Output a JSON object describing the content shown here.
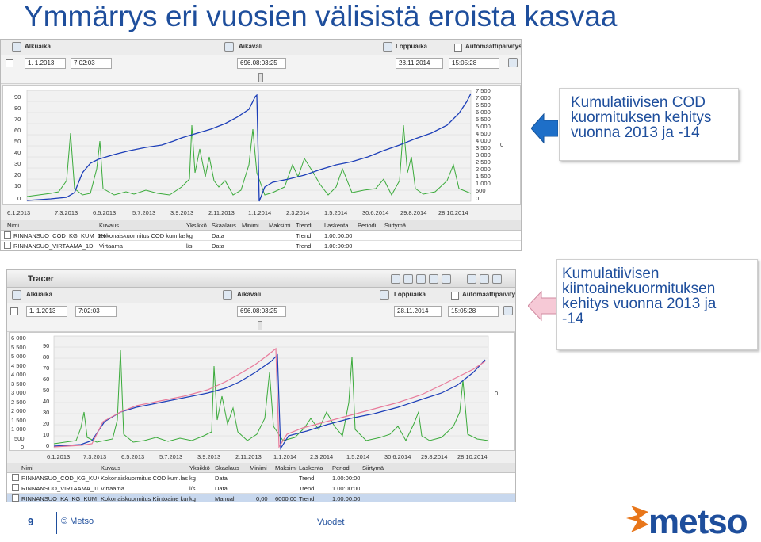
{
  "slide": {
    "title": "Ymmärrys eri vuosien välisistä eroista kasvaa",
    "page_number": "9",
    "copyright": "© Metso",
    "footer_text": "Vuodet",
    "logo_text": "metso",
    "colors": {
      "title": "#1e4e9c",
      "arrow_blue": "#1e6fc8",
      "arrow_pink": "#f6c9d6",
      "logo_orange": "#e8761a"
    }
  },
  "callouts": {
    "top": [
      "Kumulatiivisen COD",
      "kuormituksen kehitys",
      "vuonna 2013 ja -14"
    ],
    "bottom": [
      "Kumulatiivisen",
      "kiintoainekuormituksen",
      "kehitys vuonna 2013 ja",
      "-14"
    ]
  },
  "tracer_top": {
    "start_label": "Alkuaika",
    "interval_label": "Aikaväli",
    "end_label": "Loppuaika",
    "auto_label": "Automaattipäivitys",
    "start_date": "1. 1.2013",
    "start_time": "7:02:03",
    "interval_value": "696.08:03:25",
    "end_date": "28.11.2014",
    "end_time": "15:05:28",
    "left_ticks": [
      "90",
      "80",
      "70",
      "60",
      "50",
      "40",
      "30",
      "20",
      "10",
      "0"
    ],
    "right_ticks": [
      "7 500",
      "7 000",
      "6 500",
      "6 000",
      "5 500",
      "5 000",
      "4 500",
      "4 000",
      "3 500",
      "3 000",
      "2 500",
      "2 000",
      "1 500",
      "1 000",
      "500",
      "0"
    ],
    "right_edge_zero": "0",
    "x_ticks": [
      "6.1.2013",
      "7.3.2013",
      "6.5.2013",
      "5.7.2013",
      "3.9.2013",
      "2.11.2013",
      "1.1.2014",
      "2.3.2014",
      "1.5.2014",
      "30.6.2014",
      "29.8.2014",
      "28.10.2014"
    ],
    "columns": [
      "Nimi",
      "Kuvaus",
      "Yksikkö",
      "Skaalaus",
      "Minimi",
      "Maksimi",
      "Trendi",
      "Laskenta",
      "Periodi",
      "Siirtymä"
    ],
    "rows": [
      {
        "name": "RINNANSUO_COD_KG_KUM_1H",
        "desc": "Kokonaiskuormitus COD kum.laskt.",
        "unit": "kg",
        "calc": "Data",
        "trend": "Trend",
        "period": "1.00:00:00"
      },
      {
        "name": "RINNANSUO_VIRTAAMA_1D",
        "desc": "Virtaama",
        "unit": "l/s",
        "calc": "Data",
        "trend": "Trend",
        "period": "1.00:00:00"
      }
    ]
  },
  "tracer_bottom": {
    "window_title": "Tracer",
    "start_label": "Alkuaika",
    "interval_label": "Aikaväli",
    "end_label": "Loppuaika",
    "auto_label": "Automaattipäivitys",
    "start_date": "1. 1.2013",
    "start_time": "7:02:03",
    "interval_value": "696.08:03:25",
    "end_date": "28.11.2014",
    "end_time": "15:05:28",
    "outer_ticks": [
      "6 000",
      "5 500",
      "5 000",
      "4 500",
      "4 000",
      "3 500",
      "3 000",
      "2 500",
      "2 000",
      "1 500",
      "1 000",
      "500",
      "0"
    ],
    "left_ticks": [
      "90",
      "80",
      "70",
      "60",
      "50",
      "40",
      "30",
      "20",
      "10",
      "0"
    ],
    "right_edge_zero": "0",
    "x_ticks": [
      "6.1.2013",
      "7.3.2013",
      "6.5.2013",
      "5.7.2013",
      "3.9.2013",
      "2.11.2013",
      "1.1.2014",
      "2.3.2014",
      "1.5.2014",
      "30.6.2014",
      "29.8.2014",
      "28.10.2014"
    ],
    "columns": [
      "Nimi",
      "Kuvaus",
      "Yksikkö",
      "Skaalaus",
      "Minimi",
      "Maksimi",
      "Laskenta",
      "Periodi",
      "Siirtymä"
    ],
    "rows": [
      {
        "name": "RINNANSUO_COD_KG_KUM_1H",
        "desc": "Kokonaiskuormitus COD kum.laskt.",
        "unit": "kg",
        "scaling": "Data",
        "min": "",
        "max": "",
        "trend": "Trend",
        "period": "1.00:00:00"
      },
      {
        "name": "RINNANSUO_VIRTAAMA_1D",
        "desc": "Virtaama",
        "unit": "l/s",
        "scaling": "Data",
        "min": "",
        "max": "",
        "trend": "Trend",
        "period": "1.00:00:00"
      },
      {
        "name": "RINNANSUO_KA_KG_KUM_1H",
        "desc": "Kokonaiskuormitus Kiintoaine kum",
        "unit": "kg",
        "scaling": "Manual",
        "min": "0,00",
        "max": "6000,00",
        "trend": "Trend",
        "period": "1.00:00:00"
      }
    ]
  }
}
